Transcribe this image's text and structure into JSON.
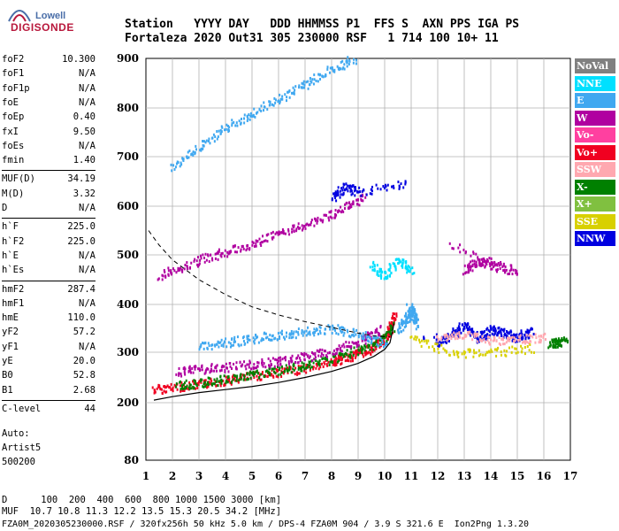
{
  "logo": {
    "top": "Lowell",
    "bottom": "DIGISONDE"
  },
  "header": {
    "line1": "Station   YYYY DAY   DDD HHMMSS P1  FFS S  AXN PPS IGA PS",
    "line2": "Fortaleza 2020 Out31 305 230000 RSF   1 714 100 10+ 11"
  },
  "params_group1": [
    {
      "name": "foF2",
      "value": "10.300"
    },
    {
      "name": "foF1",
      "value": "N/A"
    },
    {
      "name": "foF1p",
      "value": "N/A"
    },
    {
      "name": "foE",
      "value": "N/A"
    },
    {
      "name": "foEp",
      "value": "0.40"
    },
    {
      "name": "fxI",
      "value": "9.50"
    },
    {
      "name": "foEs",
      "value": "N/A"
    },
    {
      "name": "fmin",
      "value": "1.40"
    }
  ],
  "params_group2": [
    {
      "name": "MUF(D)",
      "value": "34.19"
    },
    {
      "name": "M(D)",
      "value": "3.32"
    },
    {
      "name": "D",
      "value": "N/A"
    }
  ],
  "params_group3": [
    {
      "name": "h`F",
      "value": "225.0"
    },
    {
      "name": "h`F2",
      "value": "225.0"
    },
    {
      "name": "h`E",
      "value": "N/A"
    },
    {
      "name": "h`Es",
      "value": "N/A"
    }
  ],
  "params_group4": [
    {
      "name": "hmF2",
      "value": "287.4"
    },
    {
      "name": "hmF1",
      "value": "N/A"
    },
    {
      "name": "hmE",
      "value": "110.0"
    },
    {
      "name": "yF2",
      "value": "57.2"
    },
    {
      "name": "yF1",
      "value": "N/A"
    },
    {
      "name": "yE",
      "value": "20.0"
    },
    {
      "name": "B0",
      "value": "52.8"
    },
    {
      "name": "B1",
      "value": "2.68"
    }
  ],
  "params_group5": [
    {
      "name": "C-level",
      "value": "44"
    }
  ],
  "autoscaling": {
    "line1": "Auto:",
    "line2": "Artist5",
    "line3": "500200"
  },
  "legend": [
    {
      "label": "NoVal",
      "color": "#808080"
    },
    {
      "label": "NNE",
      "color": "#00e0ff"
    },
    {
      "label": "E",
      "color": "#40a8f0"
    },
    {
      "label": "W",
      "color": "#b000a0"
    },
    {
      "label": "Vo-",
      "color": "#ff40a0"
    },
    {
      "label": "Vo+",
      "color": "#f00020"
    },
    {
      "label": "SSW",
      "color": "#ffa8b0"
    },
    {
      "label": "X-",
      "color": "#008000"
    },
    {
      "label": "X+",
      "color": "#80c040"
    },
    {
      "label": "SSE",
      "color": "#d8d000"
    },
    {
      "label": "NNW",
      "color": "#0000e0"
    }
  ],
  "bottom": {
    "d_line": "D      100  200  400  600  800 1000 1500 3000 [km]",
    "muf_line": "MUF  10.7 10.8 11.3 12.2 13.5 15.3 20.5 34.2 [MHz]",
    "file_line": "FZA0M_2020305230000.RSF / 320fx256h 50 kHz 5.0 km / DPS-4 FZA0M 904 / 3.9 S 321.6 E  Ion2Png 1.3.20"
  },
  "chart_data": {
    "type": "scatter",
    "xlim": [
      1,
      17
    ],
    "ylim": [
      80,
      900
    ],
    "x_ticks": [
      1,
      2,
      3,
      4,
      5,
      6,
      7,
      8,
      9,
      10,
      11,
      12,
      13,
      14,
      15,
      16,
      17
    ],
    "y_ticks": [
      80,
      200,
      300,
      400,
      500,
      600,
      700,
      800,
      900
    ],
    "grid": true,
    "legend_position": "right",
    "traces": [
      {
        "name": "Vo+",
        "color": "#f00020",
        "points": [
          [
            1.3,
            228
          ],
          [
            2,
            232
          ],
          [
            3,
            238
          ],
          [
            4,
            246
          ],
          [
            5,
            254
          ],
          [
            6,
            262
          ],
          [
            7,
            270
          ],
          [
            8,
            282
          ],
          [
            8.5,
            290
          ],
          [
            9,
            300
          ],
          [
            9.5,
            310
          ],
          [
            10,
            330
          ],
          [
            10.2,
            350
          ],
          [
            10.35,
            380
          ]
        ]
      },
      {
        "name": "X-",
        "color": "#008000",
        "points": [
          [
            2.2,
            236
          ],
          [
            3,
            240
          ],
          [
            4,
            248
          ],
          [
            5,
            256
          ],
          [
            6,
            266
          ],
          [
            7,
            276
          ],
          [
            8,
            288
          ],
          [
            9,
            305
          ],
          [
            9.8,
            325
          ],
          [
            10.3,
            355
          ]
        ]
      },
      {
        "name": "W",
        "color": "#b000a0",
        "points": [
          [
            2.2,
            262
          ],
          [
            3,
            268
          ],
          [
            4,
            272
          ],
          [
            5,
            278
          ],
          [
            6,
            284
          ],
          [
            7,
            292
          ],
          [
            8,
            304
          ],
          [
            9,
            322
          ],
          [
            9.8,
            348
          ]
        ]
      },
      {
        "name": "E",
        "color": "#40a8f0",
        "points": [
          [
            3,
            315
          ],
          [
            4,
            322
          ],
          [
            5,
            330
          ],
          [
            6,
            338
          ],
          [
            7,
            345
          ],
          [
            8,
            352
          ],
          [
            9,
            340
          ],
          [
            10,
            320
          ]
        ]
      },
      {
        "name": "W",
        "color": "#b000a0",
        "points": [
          [
            1.5,
            460
          ],
          [
            2.5,
            480
          ],
          [
            3.5,
            500
          ],
          [
            4.5,
            515
          ],
          [
            5.5,
            535
          ],
          [
            6.5,
            555
          ],
          [
            7.5,
            575
          ],
          [
            8.5,
            600
          ],
          [
            9.2,
            620
          ]
        ]
      },
      {
        "name": "E",
        "color": "#40a8f0",
        "points": [
          [
            2,
            680
          ],
          [
            3,
            720
          ],
          [
            4,
            760
          ],
          [
            5,
            790
          ],
          [
            6,
            820
          ],
          [
            7,
            850
          ],
          [
            8,
            880
          ],
          [
            8.8,
            900
          ]
        ]
      },
      {
        "name": "NNE",
        "color": "#00e0ff",
        "points": [
          [
            9.5,
            480
          ],
          [
            10,
            460
          ],
          [
            10.5,
            490
          ],
          [
            11,
            470
          ]
        ]
      },
      {
        "name": "NNW",
        "color": "#0000e0",
        "points": [
          [
            8,
            620
          ],
          [
            8.5,
            640
          ],
          [
            9,
            630
          ],
          [
            10.8,
            650
          ]
        ]
      },
      {
        "name": "W",
        "color": "#b000a0",
        "points": [
          [
            13,
            470
          ],
          [
            13.5,
            490
          ],
          [
            14,
            480
          ],
          [
            15,
            470
          ],
          [
            12.5,
            520
          ]
        ]
      },
      {
        "name": "NNW",
        "color": "#0000e0",
        "points": [
          [
            12,
            320
          ],
          [
            12.5,
            340
          ],
          [
            13,
            360
          ],
          [
            13.5,
            330
          ],
          [
            14,
            350
          ],
          [
            14.5,
            340
          ],
          [
            15,
            330
          ],
          [
            15.5,
            345
          ],
          [
            11.5,
            330
          ]
        ]
      },
      {
        "name": "SSW",
        "color": "#ffa8b0",
        "points": [
          [
            12,
            335
          ],
          [
            13,
            340
          ],
          [
            14,
            325
          ],
          [
            15,
            330
          ],
          [
            16,
            332
          ]
        ]
      },
      {
        "name": "SSE",
        "color": "#d8d000",
        "points": [
          [
            11,
            330
          ],
          [
            12.5,
            300
          ],
          [
            14,
            300
          ],
          [
            15.5,
            310
          ]
        ]
      },
      {
        "name": "E",
        "color": "#40a8f0",
        "points": [
          [
            10.5,
            350
          ],
          [
            10.8,
            370
          ],
          [
            11,
            390
          ],
          [
            11.2,
            360
          ],
          [
            10.9,
            400
          ]
        ]
      },
      {
        "name": "X-",
        "color": "#008000",
        "points": [
          [
            16.2,
            320
          ],
          [
            16.5,
            322
          ],
          [
            16.8,
            325
          ]
        ]
      }
    ],
    "profile_line": [
      [
        1.3,
        205
      ],
      [
        2,
        212
      ],
      [
        3,
        220
      ],
      [
        4,
        226
      ],
      [
        5,
        232
      ],
      [
        6,
        240
      ],
      [
        7,
        250
      ],
      [
        8,
        262
      ],
      [
        9,
        278
      ],
      [
        9.6,
        292
      ],
      [
        10,
        306
      ],
      [
        10.2,
        320
      ],
      [
        10.3,
        345
      ],
      [
        10.35,
        360
      ]
    ],
    "dashed_line": [
      [
        1.1,
        550
      ],
      [
        1.5,
        520
      ],
      [
        2,
        490
      ],
      [
        3,
        450
      ],
      [
        4,
        420
      ],
      [
        5,
        395
      ],
      [
        6,
        378
      ],
      [
        7,
        364
      ],
      [
        8,
        352
      ],
      [
        9,
        340
      ],
      [
        9.6,
        334
      ],
      [
        10.2,
        332
      ]
    ]
  }
}
